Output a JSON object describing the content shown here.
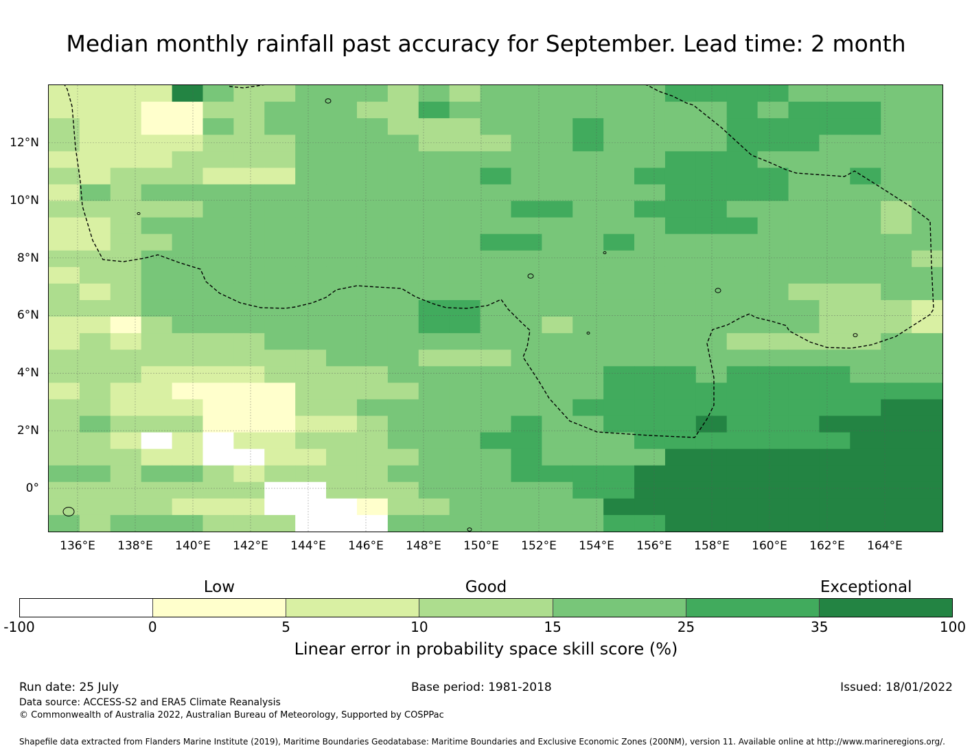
{
  "title": "Median monthly rainfall past accuracy for September. Lead time: 2 month",
  "map": {
    "lon_range": [
      135,
      166
    ],
    "lat_range": [
      -1.5,
      14
    ],
    "x_ticks": [
      "136°E",
      "138°E",
      "140°E",
      "142°E",
      "144°E",
      "146°E",
      "148°E",
      "150°E",
      "152°E",
      "154°E",
      "156°E",
      "158°E",
      "160°E",
      "162°E",
      "164°E"
    ],
    "x_tick_values": [
      136,
      138,
      140,
      142,
      144,
      146,
      148,
      150,
      152,
      154,
      156,
      158,
      160,
      162,
      164
    ],
    "y_ticks": [
      "12°N",
      "10°N",
      "8°N",
      "6°N",
      "4°N",
      "2°N",
      "0°"
    ],
    "y_tick_values": [
      12,
      10,
      8,
      6,
      4,
      2,
      0
    ],
    "grid": true,
    "boundary_style": "dashed",
    "skill_grid_description": "Gridded skill score classes (0=<0, 1=0-5, 2=5-10, 3=10-15, 4=15-25, 5=25-35, 6=35-100); rows north to south",
    "skill_rows": [
      "22226433444343444444555544444",
      "22211334443354444444445455544",
      "32211434444333444544445555544",
      "32222333444433344544445554444",
      "22223333444444444444555444444",
      "32333222444444544445555544544",
      "24344444444444444444555544444",
      "33333444444444455445554444434",
      "22344444444444444444555444434",
      "22334444444444554454444444444",
      "33344444444444444444444444443",
      "23344444444444444444444444444",
      "32344444444444444444444433344",
      "33344444444455444444444443332",
      "22134444444455443444444443332",
      "23233334444444444444443333344",
      "33333333344433344444444444444",
      "33322223333444444455545555444",
      "23221111333344444455555555555",
      "33222111334444444555555555566",
      "34333111223444454455565556666",
      "33202022333444554445555555666",
      "33322002233344454444666666666",
      "44344323333444455556666666666",
      "33333330033344444556666666666",
      "33332220001334444466666666666",
      "43444333000444444455666666666"
    ]
  },
  "colorbar": {
    "ticks": [
      "-100",
      "0",
      "5",
      "10",
      "15",
      "25",
      "35",
      "100"
    ],
    "colors": [
      "#ffffff",
      "#ffffcc",
      "#d9f0a3",
      "#addd8e",
      "#78c679",
      "#41ab5d",
      "#238443"
    ],
    "categories": [
      {
        "label": "Low"
      },
      {
        "label": "Good"
      },
      {
        "label": "Exceptional"
      }
    ],
    "label": "Linear error in probability space skill score (%)"
  },
  "footer": {
    "run_date": "Run date: 25 July",
    "base_period": "Base period: 1981-2018",
    "issued": "Issued: 18/01/2022",
    "data_source": "Data source: ACCESS-S2 and ERA5 Climate Reanalysis",
    "copyright": "© Commonwealth of Australia 2022, Australian Bureau of Meteorology, Supported by COSPPac",
    "shapefile": "Shapefile data extracted from Flanders Marine Institute (2019), Maritime Boundaries Geodatabase: Maritime Boundaries and Exclusive Economic Zones (200NM), version 11. Available online at http://www.marineregions.org/."
  }
}
